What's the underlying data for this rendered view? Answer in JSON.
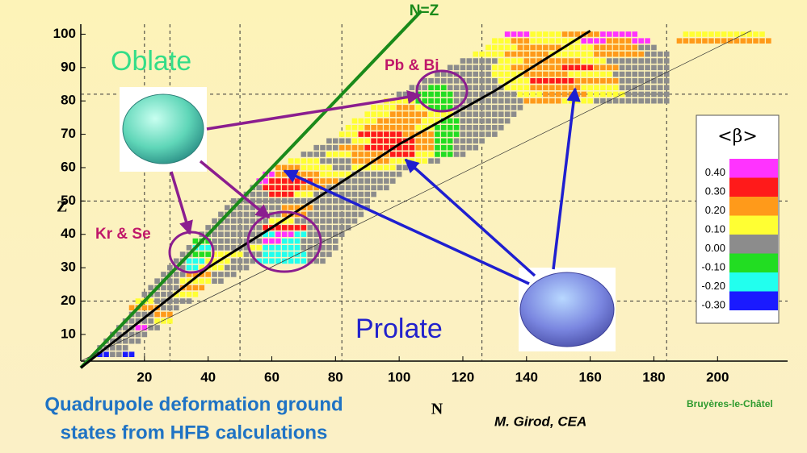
{
  "chart_data": {
    "type": "heatmap",
    "title_lines": [
      "Quadrupole deformation ground",
      "states from HFB calculations"
    ],
    "x_label": "N",
    "y_label": "Z",
    "xlim": [
      0,
      222
    ],
    "ylim": [
      2,
      103
    ],
    "xticks": [
      20,
      40,
      60,
      80,
      100,
      120,
      140,
      160,
      180,
      200
    ],
    "yticks": [
      10,
      20,
      30,
      40,
      50,
      60,
      70,
      80,
      90,
      100
    ],
    "magic_n": [
      20,
      28,
      50,
      82,
      126,
      184
    ],
    "magic_z": [
      20,
      50,
      82
    ],
    "nz_line_label": "N=Z",
    "stability_line": {
      "x": [
        0,
        40,
        60,
        100,
        130,
        160
      ],
      "y": [
        0,
        30,
        42,
        67,
        83,
        101
      ]
    },
    "annotations": {
      "oblate": "Oblate",
      "prolate": "Prolate",
      "krse": "Kr & Se",
      "pbbi": "Pb & Bi",
      "author": "M. Girod, CEA",
      "place": "Bruyères-le-Châtel"
    },
    "legend": {
      "title": "<β>",
      "labels": [
        "0.40",
        "0.30",
        "0.20",
        "0.10",
        "0.00",
        "-0.10",
        "-0.20",
        "-0.30"
      ],
      "colors": [
        "#ff33ff",
        "#ff1a1a",
        "#ff9a1a",
        "#ffff33",
        "#8c8c8c",
        "#22dd22",
        "#22ffee",
        "#1a1aff"
      ]
    },
    "cells": [
      [
        4,
        6,
        8,
        7
      ],
      [
        4,
        10,
        12,
        4
      ],
      [
        4,
        14,
        16,
        7
      ],
      [
        6,
        6,
        14,
        4
      ],
      [
        8,
        8,
        18,
        4
      ],
      [
        10,
        10,
        20,
        4
      ],
      [
        12,
        12,
        16,
        4
      ],
      [
        12,
        18,
        20,
        0
      ],
      [
        12,
        22,
        24,
        4
      ],
      [
        14,
        14,
        22,
        4
      ],
      [
        14,
        24,
        28,
        3
      ],
      [
        16,
        16,
        22,
        4
      ],
      [
        16,
        24,
        28,
        2
      ],
      [
        18,
        16,
        24,
        2
      ],
      [
        18,
        26,
        30,
        4
      ],
      [
        20,
        18,
        22,
        3
      ],
      [
        20,
        24,
        34,
        4
      ],
      [
        22,
        20,
        28,
        4
      ],
      [
        22,
        30,
        36,
        3
      ],
      [
        24,
        22,
        30,
        4
      ],
      [
        24,
        32,
        38,
        2
      ],
      [
        26,
        24,
        30,
        4
      ],
      [
        26,
        32,
        40,
        3
      ],
      [
        26,
        42,
        44,
        4
      ],
      [
        28,
        26,
        32,
        4
      ],
      [
        28,
        34,
        40,
        2
      ],
      [
        28,
        42,
        48,
        4
      ],
      [
        30,
        28,
        32,
        4
      ],
      [
        30,
        34,
        36,
        6
      ],
      [
        30,
        38,
        44,
        3
      ],
      [
        30,
        46,
        52,
        4
      ],
      [
        32,
        30,
        32,
        4
      ],
      [
        32,
        34,
        38,
        6
      ],
      [
        32,
        40,
        46,
        3
      ],
      [
        32,
        48,
        54,
        4
      ],
      [
        32,
        56,
        70,
        6
      ],
      [
        32,
        72,
        76,
        4
      ],
      [
        34,
        32,
        34,
        4
      ],
      [
        34,
        36,
        40,
        5
      ],
      [
        34,
        42,
        50,
        3
      ],
      [
        34,
        52,
        56,
        4
      ],
      [
        34,
        58,
        70,
        6
      ],
      [
        34,
        72,
        78,
        4
      ],
      [
        36,
        34,
        34,
        4
      ],
      [
        36,
        36,
        40,
        6
      ],
      [
        36,
        42,
        52,
        4
      ],
      [
        36,
        54,
        56,
        3
      ],
      [
        36,
        58,
        68,
        6
      ],
      [
        36,
        70,
        80,
        4
      ],
      [
        38,
        36,
        40,
        5
      ],
      [
        38,
        42,
        56,
        4
      ],
      [
        38,
        58,
        62,
        0
      ],
      [
        38,
        64,
        68,
        6
      ],
      [
        38,
        70,
        80,
        4
      ],
      [
        40,
        38,
        56,
        4
      ],
      [
        40,
        58,
        60,
        6
      ],
      [
        40,
        62,
        66,
        0
      ],
      [
        40,
        68,
        70,
        6
      ],
      [
        40,
        72,
        82,
        4
      ],
      [
        42,
        40,
        56,
        4
      ],
      [
        42,
        58,
        70,
        1
      ],
      [
        42,
        72,
        84,
        4
      ],
      [
        44,
        42,
        58,
        4
      ],
      [
        44,
        60,
        66,
        3
      ],
      [
        44,
        68,
        86,
        4
      ],
      [
        46,
        44,
        62,
        4
      ],
      [
        46,
        64,
        70,
        2
      ],
      [
        46,
        72,
        88,
        4
      ],
      [
        48,
        46,
        62,
        4
      ],
      [
        48,
        64,
        72,
        2
      ],
      [
        48,
        74,
        90,
        4
      ],
      [
        50,
        48,
        90,
        4
      ],
      [
        52,
        52,
        58,
        4
      ],
      [
        52,
        60,
        66,
        1
      ],
      [
        52,
        68,
        72,
        3
      ],
      [
        52,
        74,
        92,
        4
      ],
      [
        54,
        54,
        56,
        4
      ],
      [
        54,
        58,
        68,
        1
      ],
      [
        54,
        70,
        76,
        2
      ],
      [
        54,
        78,
        96,
        4
      ],
      [
        56,
        56,
        58,
        0
      ],
      [
        56,
        60,
        72,
        1
      ],
      [
        56,
        74,
        80,
        2
      ],
      [
        56,
        82,
        98,
        4
      ],
      [
        58,
        58,
        60,
        0
      ],
      [
        58,
        62,
        74,
        2
      ],
      [
        58,
        76,
        84,
        3
      ],
      [
        58,
        86,
        100,
        4
      ],
      [
        60,
        62,
        68,
        2
      ],
      [
        60,
        70,
        78,
        3
      ],
      [
        60,
        80,
        84,
        4
      ],
      [
        60,
        86,
        98,
        3
      ],
      [
        60,
        100,
        104,
        4
      ],
      [
        62,
        66,
        74,
        3
      ],
      [
        62,
        76,
        84,
        4
      ],
      [
        62,
        86,
        96,
        2
      ],
      [
        62,
        98,
        108,
        3
      ],
      [
        62,
        110,
        112,
        4
      ],
      [
        64,
        70,
        76,
        4
      ],
      [
        64,
        78,
        84,
        3
      ],
      [
        64,
        86,
        96,
        2
      ],
      [
        64,
        98,
        104,
        1
      ],
      [
        64,
        106,
        110,
        3
      ],
      [
        64,
        112,
        116,
        5
      ],
      [
        64,
        118,
        120,
        4
      ],
      [
        66,
        74,
        80,
        4
      ],
      [
        66,
        82,
        88,
        2
      ],
      [
        66,
        90,
        104,
        1
      ],
      [
        66,
        106,
        110,
        2
      ],
      [
        66,
        112,
        116,
        5
      ],
      [
        66,
        118,
        124,
        4
      ],
      [
        68,
        78,
        84,
        4
      ],
      [
        68,
        86,
        90,
        3
      ],
      [
        68,
        92,
        104,
        1
      ],
      [
        68,
        106,
        110,
        2
      ],
      [
        68,
        112,
        116,
        5
      ],
      [
        68,
        118,
        126,
        4
      ],
      [
        70,
        82,
        86,
        3
      ],
      [
        70,
        88,
        100,
        1
      ],
      [
        70,
        102,
        110,
        2
      ],
      [
        70,
        112,
        118,
        5
      ],
      [
        70,
        120,
        130,
        4
      ],
      [
        72,
        84,
        88,
        3
      ],
      [
        72,
        90,
        104,
        2
      ],
      [
        72,
        106,
        110,
        3
      ],
      [
        72,
        112,
        118,
        5
      ],
      [
        72,
        120,
        132,
        4
      ],
      [
        74,
        86,
        92,
        3
      ],
      [
        74,
        94,
        106,
        2
      ],
      [
        74,
        108,
        112,
        3
      ],
      [
        74,
        114,
        118,
        5
      ],
      [
        74,
        120,
        134,
        4
      ],
      [
        76,
        90,
        96,
        3
      ],
      [
        76,
        98,
        108,
        2
      ],
      [
        76,
        110,
        116,
        3
      ],
      [
        76,
        118,
        136,
        4
      ],
      [
        78,
        92,
        98,
        3
      ],
      [
        78,
        100,
        104,
        2
      ],
      [
        78,
        106,
        108,
        3
      ],
      [
        78,
        110,
        116,
        5
      ],
      [
        78,
        118,
        138,
        4
      ],
      [
        80,
        96,
        104,
        3
      ],
      [
        80,
        106,
        116,
        5
      ],
      [
        80,
        118,
        138,
        4
      ],
      [
        80,
        140,
        150,
        2
      ],
      [
        80,
        152,
        160,
        3
      ],
      [
        80,
        162,
        184,
        4
      ],
      [
        82,
        100,
        104,
        4
      ],
      [
        82,
        106,
        116,
        5
      ],
      [
        82,
        118,
        136,
        4
      ],
      [
        82,
        138,
        144,
        3
      ],
      [
        82,
        146,
        158,
        2
      ],
      [
        82,
        160,
        170,
        3
      ],
      [
        82,
        172,
        184,
        4
      ],
      [
        84,
        104,
        108,
        4
      ],
      [
        84,
        110,
        114,
        5
      ],
      [
        84,
        116,
        132,
        4
      ],
      [
        84,
        134,
        140,
        3
      ],
      [
        84,
        142,
        156,
        2
      ],
      [
        84,
        158,
        168,
        3
      ],
      [
        84,
        170,
        184,
        4
      ],
      [
        86,
        108,
        130,
        4
      ],
      [
        86,
        132,
        140,
        3
      ],
      [
        86,
        142,
        154,
        1
      ],
      [
        86,
        156,
        168,
        2
      ],
      [
        86,
        170,
        184,
        4
      ],
      [
        88,
        112,
        128,
        4
      ],
      [
        88,
        130,
        138,
        3
      ],
      [
        88,
        140,
        152,
        2
      ],
      [
        88,
        154,
        166,
        3
      ],
      [
        88,
        168,
        184,
        4
      ],
      [
        90,
        116,
        128,
        4
      ],
      [
        90,
        130,
        134,
        3
      ],
      [
        90,
        136,
        150,
        2
      ],
      [
        90,
        152,
        160,
        1
      ],
      [
        90,
        162,
        168,
        2
      ],
      [
        90,
        170,
        184,
        4
      ],
      [
        92,
        120,
        130,
        4
      ],
      [
        92,
        132,
        138,
        3
      ],
      [
        92,
        140,
        156,
        2
      ],
      [
        92,
        158,
        164,
        3
      ],
      [
        92,
        166,
        184,
        4
      ],
      [
        94,
        124,
        132,
        3
      ],
      [
        94,
        134,
        146,
        2
      ],
      [
        94,
        148,
        160,
        3
      ],
      [
        94,
        162,
        176,
        2
      ],
      [
        94,
        178,
        184,
        4
      ],
      [
        96,
        128,
        136,
        3
      ],
      [
        96,
        138,
        150,
        2
      ],
      [
        96,
        152,
        160,
        3
      ],
      [
        96,
        162,
        174,
        2
      ],
      [
        96,
        176,
        180,
        4
      ],
      [
        98,
        130,
        134,
        3
      ],
      [
        98,
        136,
        140,
        2
      ],
      [
        98,
        142,
        156,
        3
      ],
      [
        98,
        158,
        164,
        0
      ],
      [
        98,
        166,
        172,
        2
      ],
      [
        98,
        174,
        178,
        0
      ],
      [
        98,
        188,
        216,
        2
      ],
      [
        100,
        134,
        140,
        0
      ],
      [
        100,
        142,
        150,
        3
      ],
      [
        100,
        152,
        162,
        2
      ],
      [
        100,
        164,
        174,
        0
      ],
      [
        100,
        190,
        214,
        3
      ]
    ]
  }
}
